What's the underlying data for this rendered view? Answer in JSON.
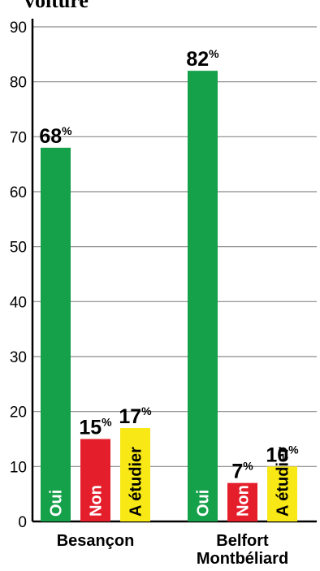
{
  "title_fragment": "voiture",
  "chart_data": {
    "type": "bar",
    "ylim": [
      0,
      90
    ],
    "yticks": [
      0,
      10,
      20,
      30,
      40,
      50,
      60,
      70,
      80,
      90
    ],
    "grid": true,
    "groups": [
      {
        "label_lines": [
          "Besançon"
        ],
        "bars": [
          {
            "label": "Oui",
            "value": 68,
            "value_text": "68",
            "unit": "%",
            "color": "#15a04a",
            "label_color": "#ffffff"
          },
          {
            "label": "Non",
            "value": 15,
            "value_text": "15",
            "unit": "%",
            "color": "#e41e2b",
            "label_color": "#ffffff"
          },
          {
            "label": "A étudier",
            "value": 17,
            "value_text": "17",
            "unit": "%",
            "color": "#f7e816",
            "label_color": "#000000"
          }
        ]
      },
      {
        "label_lines": [
          "Belfort",
          "Montbéliard"
        ],
        "bars": [
          {
            "label": "Oui",
            "value": 82,
            "value_text": "82",
            "unit": "%",
            "color": "#15a04a",
            "label_color": "#ffffff"
          },
          {
            "label": "Non",
            "value": 7,
            "value_text": "7",
            "unit": "%",
            "color": "#e41e2b",
            "label_color": "#ffffff"
          },
          {
            "label": "A étudier",
            "value": 10,
            "value_text": "10",
            "unit": "%",
            "color": "#f7e816",
            "label_color": "#000000"
          }
        ]
      }
    ]
  }
}
